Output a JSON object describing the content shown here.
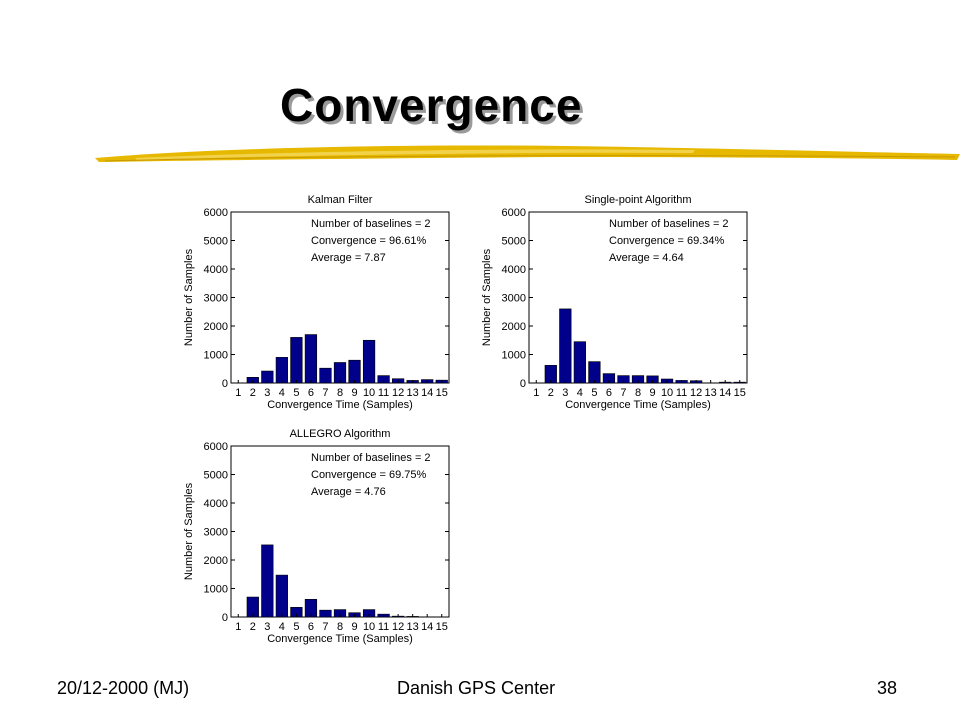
{
  "slide": {
    "title": "Convergence",
    "footer_left": "20/12-2000 (MJ)",
    "footer_center": "Danish GPS Center",
    "footer_right": "38"
  },
  "colors": {
    "bar": "#00008b",
    "title_shadow": "#9a9a9a",
    "swoosh": "#e6b800"
  },
  "chart_data": [
    {
      "type": "bar",
      "title": "Kalman Filter",
      "xlabel": "Convergence Time (Samples)",
      "ylabel": "Number of Samples",
      "categories": [
        "1",
        "2",
        "3",
        "4",
        "5",
        "6",
        "7",
        "8",
        "9",
        "10",
        "11",
        "12",
        "13",
        "14",
        "15"
      ],
      "values": [
        0,
        200,
        420,
        900,
        1600,
        1700,
        520,
        720,
        800,
        1500,
        260,
        150,
        90,
        120,
        100
      ],
      "ylim": [
        0,
        6000
      ],
      "yticks": [
        0,
        1000,
        2000,
        3000,
        4000,
        5000,
        6000
      ],
      "annotations": [
        "Number of baselines = 2",
        "Convergence = 96.61%",
        "Average = 7.87"
      ]
    },
    {
      "type": "bar",
      "title": "Single-point Algorithm",
      "xlabel": "Convergence Time (Samples)",
      "ylabel": "Number of Samples",
      "categories": [
        "1",
        "2",
        "3",
        "4",
        "5",
        "6",
        "7",
        "8",
        "9",
        "10",
        "11",
        "12",
        "13",
        "14",
        "15"
      ],
      "values": [
        0,
        620,
        2600,
        1450,
        750,
        330,
        260,
        260,
        250,
        140,
        90,
        80,
        0,
        30,
        30
      ],
      "ylim": [
        0,
        6000
      ],
      "yticks": [
        0,
        1000,
        2000,
        3000,
        4000,
        5000,
        6000
      ],
      "annotations": [
        "Number of baselines = 2",
        "Convergence = 69.34%",
        "Average = 4.64"
      ]
    },
    {
      "type": "bar",
      "title": "ALLEGRO Algorithm",
      "xlabel": "Convergence Time (Samples)",
      "ylabel": "Number of Samples",
      "categories": [
        "1",
        "2",
        "3",
        "4",
        "5",
        "6",
        "7",
        "8",
        "9",
        "10",
        "11",
        "12",
        "13",
        "14",
        "15"
      ],
      "values": [
        0,
        700,
        2530,
        1470,
        340,
        620,
        240,
        260,
        150,
        260,
        100,
        30,
        20,
        0,
        0
      ],
      "ylim": [
        0,
        6000
      ],
      "yticks": [
        0,
        1000,
        2000,
        3000,
        4000,
        5000,
        6000
      ],
      "annotations": [
        "Number of baselines = 2",
        "Convergence = 69.75%",
        "Average = 4.76"
      ]
    }
  ]
}
